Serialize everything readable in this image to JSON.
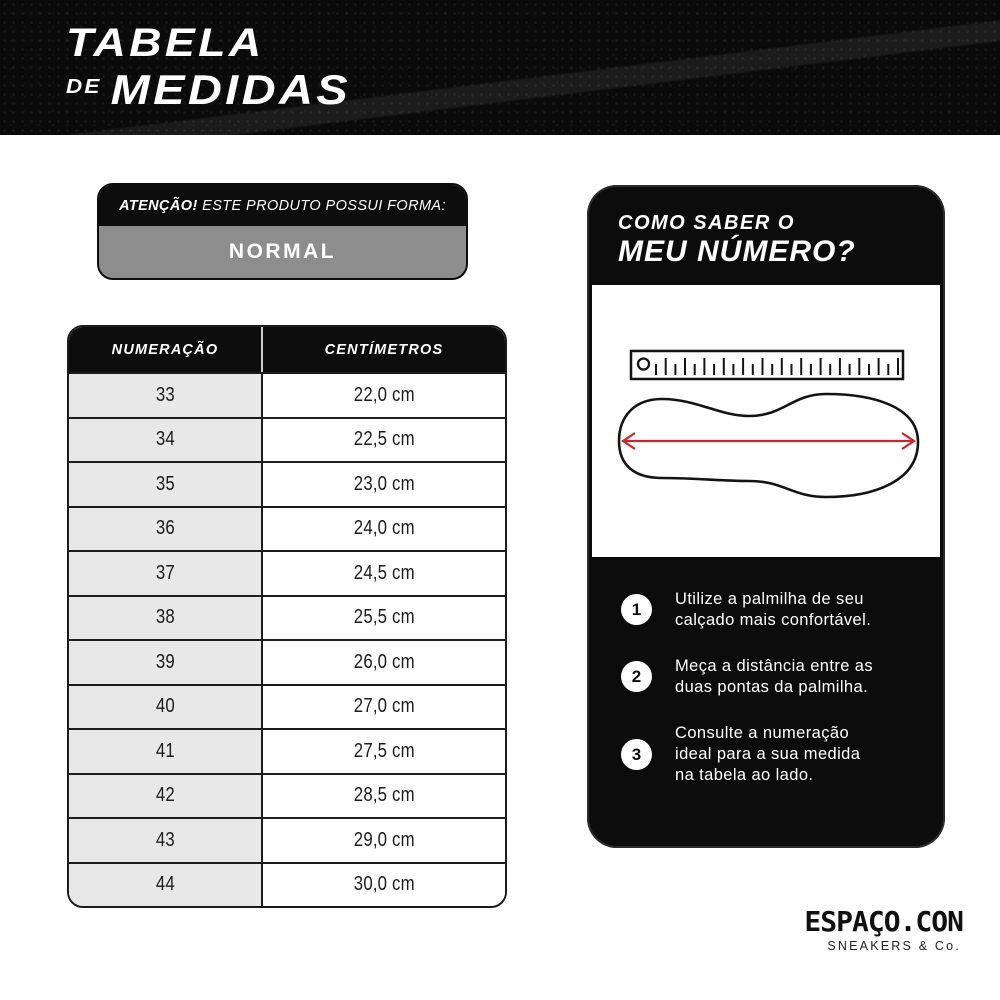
{
  "banner": {
    "title_line1": "TABELA",
    "title_line2_small": "DE",
    "title_line2": "MEDIDAS"
  },
  "attention": {
    "header_bold": "ATENÇÃO!",
    "header_rest": " ESTE PRODUTO POSSUI FORMA:",
    "value": "NORMAL"
  },
  "table": {
    "columns": [
      "NUMERAÇÃO",
      "CENTÍMETROS"
    ],
    "rows": [
      {
        "size": "33",
        "cm": "22,0 cm"
      },
      {
        "size": "34",
        "cm": "22,5 cm"
      },
      {
        "size": "35",
        "cm": "23,0 cm"
      },
      {
        "size": "36",
        "cm": "24,0 cm"
      },
      {
        "size": "37",
        "cm": "24,5 cm"
      },
      {
        "size": "38",
        "cm": "25,5 cm"
      },
      {
        "size": "39",
        "cm": "26,0 cm"
      },
      {
        "size": "40",
        "cm": "27,0 cm"
      },
      {
        "size": "41",
        "cm": "27,5 cm"
      },
      {
        "size": "42",
        "cm": "28,5 cm"
      },
      {
        "size": "43",
        "cm": "29,0 cm"
      },
      {
        "size": "44",
        "cm": "30,0 cm"
      }
    ]
  },
  "howto": {
    "title_line1": "COMO SABER O",
    "title_line2": "MEU NÚMERO?",
    "icons": {
      "ruler": "ruler-icon",
      "insole": "insole-outline-icon",
      "arrow": "measure-arrow-icon"
    },
    "steps": [
      {
        "number": "1",
        "lines": [
          "Utilize a palmilha de seu",
          "calçado mais confortável."
        ]
      },
      {
        "number": "2",
        "lines": [
          "Meça a distância entre as",
          "duas pontas da palmilha."
        ]
      },
      {
        "number": "3",
        "lines": [
          "Consulte a numeração",
          "ideal para a sua medida",
          "na tabela ao lado."
        ]
      }
    ]
  },
  "footer": {
    "brand": "ESPAÇO.CON",
    "brand_sub": "SNEAKERS & Co."
  },
  "colors": {
    "banner_black": "#0a0a0a",
    "card_black": "#0c0c0c",
    "attention_gray": "#8d8d8d",
    "row_gray": "#e8e8e8",
    "border_dark": "#1c1c1c",
    "arrow_red": "#c9252b"
  }
}
